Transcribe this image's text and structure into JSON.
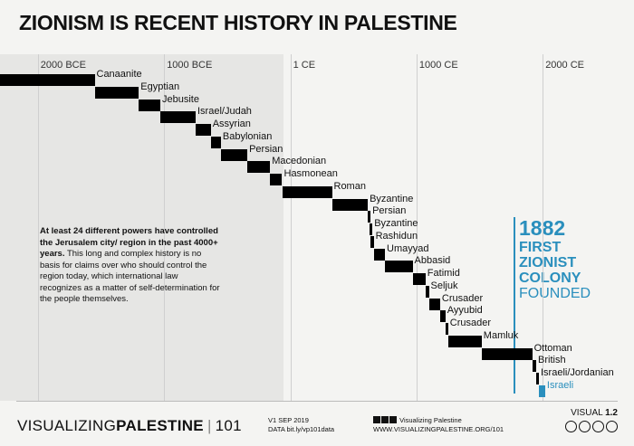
{
  "title": "ZIONISM IS RECENT HISTORY IN PALESTINE",
  "chart_data": {
    "type": "bar",
    "subtype": "timeline-gantt",
    "x_axis": {
      "ticks": [
        "2000 BCE",
        "1000 BCE",
        "1 CE",
        "1000 CE",
        "2000 CE"
      ],
      "tick_years": [
        -2000,
        -1000,
        1,
        1000,
        2000
      ],
      "xlim": [
        -2300,
        2020
      ]
    },
    "series": [
      {
        "label": "Canaanite",
        "start": -2300,
        "end": -1550
      },
      {
        "label": "Egyptian",
        "start": -1550,
        "end": -1200
      },
      {
        "label": "Jebusite",
        "start": -1200,
        "end": -1030
      },
      {
        "label": "Israel/Judah",
        "start": -1030,
        "end": -750
      },
      {
        "label": "Assyrian",
        "start": -750,
        "end": -630
      },
      {
        "label": "Babylonian",
        "start": -630,
        "end": -550
      },
      {
        "label": "Persian",
        "start": -550,
        "end": -340
      },
      {
        "label": "Macedonian",
        "start": -340,
        "end": -160
      },
      {
        "label": "Hasmonean",
        "start": -160,
        "end": -65
      },
      {
        "label": "Roman",
        "start": -65,
        "end": 330
      },
      {
        "label": "Byzantine",
        "start": 330,
        "end": 614
      },
      {
        "label": "Persian",
        "start": 614,
        "end": 629
      },
      {
        "label": "Byzantine",
        "start": 629,
        "end": 637
      },
      {
        "label": "Rashidun",
        "start": 637,
        "end": 661
      },
      {
        "label": "Umayyad",
        "start": 661,
        "end": 750
      },
      {
        "label": "Abbasid",
        "start": 750,
        "end": 969
      },
      {
        "label": "Fatimid",
        "start": 969,
        "end": 1071
      },
      {
        "label": "Seljuk",
        "start": 1071,
        "end": 1098
      },
      {
        "label": "Crusader",
        "start": 1099,
        "end": 1187
      },
      {
        "label": "Ayyubid",
        "start": 1187,
        "end": 1229
      },
      {
        "label": "Crusader",
        "start": 1229,
        "end": 1244
      },
      {
        "label": "Mamluk",
        "start": 1250,
        "end": 1516
      },
      {
        "label": "Ottoman",
        "start": 1516,
        "end": 1917
      },
      {
        "label": "British",
        "start": 1917,
        "end": 1948
      },
      {
        "label": "Israeli/Jordanian",
        "start": 1948,
        "end": 1967
      },
      {
        "label": "Israeli",
        "start": 1967,
        "end": 2019
      }
    ],
    "highlight_color": "#2a8fbd",
    "bar_color": "#000000",
    "marker": {
      "year": 1882,
      "label_year": "1882",
      "label_lines": [
        "FIRST",
        "ZIONIST",
        "COLONY",
        "FOUNDED"
      ]
    }
  },
  "note": {
    "bold": "At least 24 different powers have controlled the Jerusalem city/ region in the past 4000+ years.",
    "text": "This long and complex history is no basis for claims over who should control the region today, which international law recognizes as a matter of self-determination for the people themselves."
  },
  "footer": {
    "brand_light": "VISUALIZING",
    "brand_bold": "PALESTINE",
    "brand_num": "101",
    "version_line": "V1 SEP 2019",
    "data_line": "DATA bit.ly/vp101data",
    "social_line": "Visualizing Palestine",
    "site_line": "WWW.VISUALIZINGPALESTINE.ORG/101",
    "visual_tag": "VISUAL",
    "visual_num": "1.2"
  }
}
